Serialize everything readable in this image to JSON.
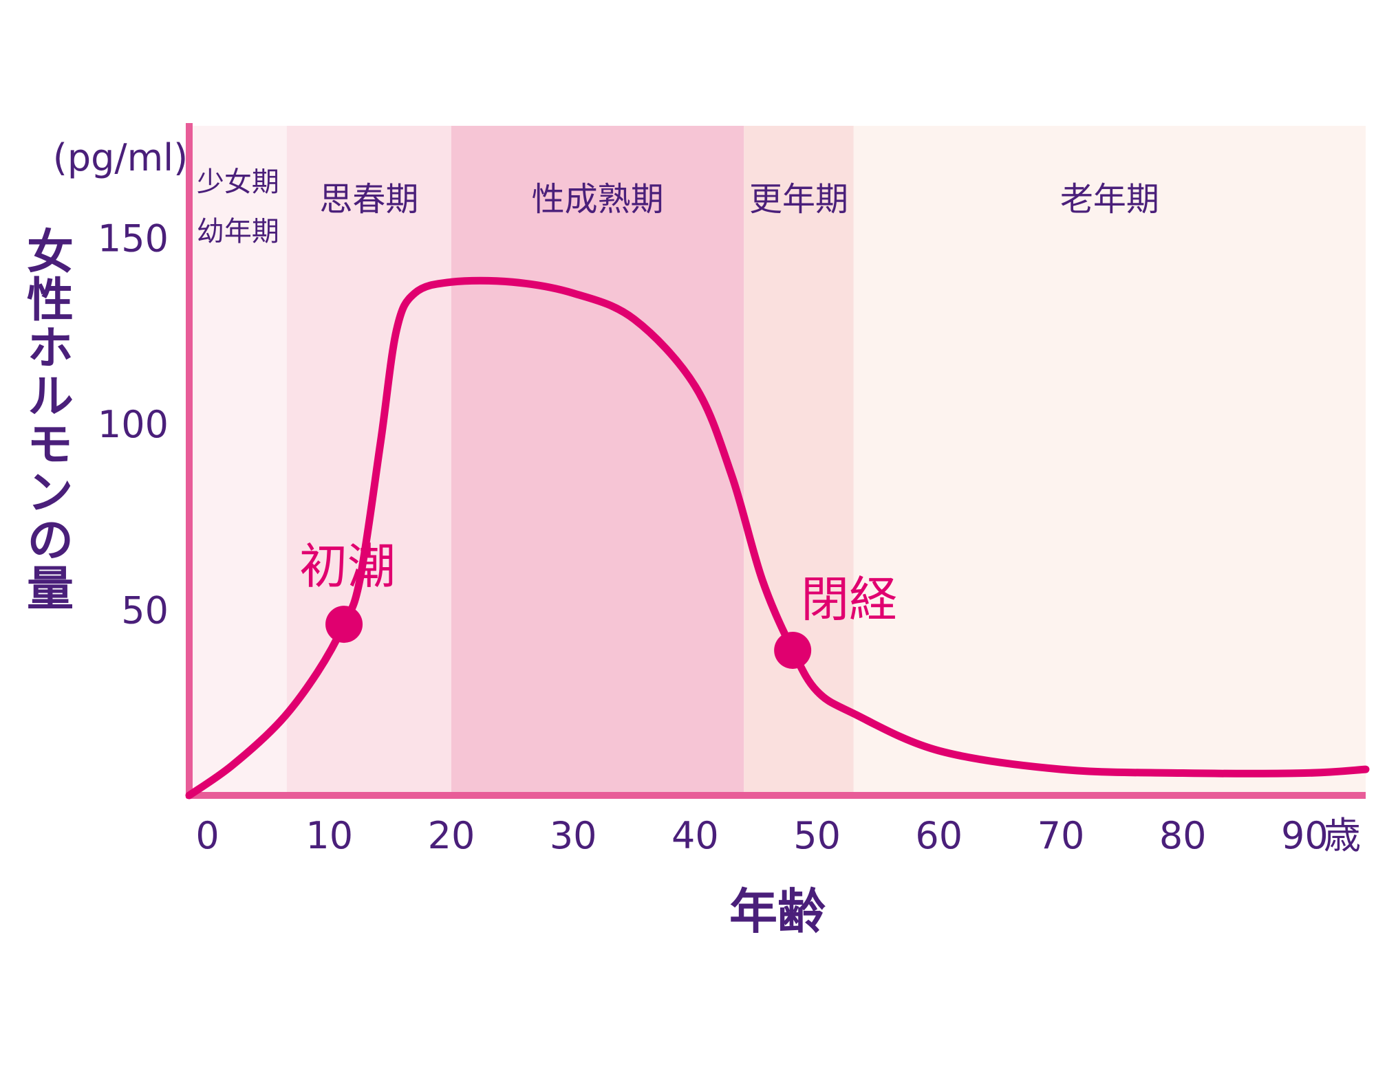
{
  "chart_data": {
    "type": "line",
    "ylabel": "女性ホルモンの量",
    "yunit": "(pg/ml)",
    "xlabel": "年齢",
    "xunit": "歳",
    "xlim": [
      -1.5,
      95
    ],
    "ylim": [
      0,
      180
    ],
    "x_ticks": [
      0,
      10,
      20,
      30,
      40,
      50,
      60,
      70,
      80,
      90
    ],
    "y_ticks": [
      50,
      100,
      150
    ],
    "stages": [
      {
        "label": "少女期",
        "label2": "幼年期",
        "from": -1.5,
        "to": 6.5,
        "color": "#fdf1f3"
      },
      {
        "label": "思春期",
        "from": 6.5,
        "to": 20,
        "color": "#fbe2e8"
      },
      {
        "label": "性成熟期",
        "from": 20,
        "to": 44,
        "color": "#f6c5d5"
      },
      {
        "label": "更年期",
        "from": 44,
        "to": 53,
        "color": "#fae0de"
      },
      {
        "label": "老年期",
        "from": 53,
        "to": 95,
        "color": "#fdf3ef"
      }
    ],
    "series": [
      {
        "color": "#e0006f",
        "points": [
          [
            -1.5,
            0
          ],
          [
            2,
            8
          ],
          [
            6,
            20
          ],
          [
            9,
            33
          ],
          [
            11.2,
            46
          ],
          [
            12.5,
            58
          ],
          [
            14.2,
            95
          ],
          [
            15.5,
            125
          ],
          [
            17,
            135
          ],
          [
            20,
            138
          ],
          [
            25,
            138
          ],
          [
            30,
            135
          ],
          [
            35,
            128
          ],
          [
            40,
            110
          ],
          [
            43,
            86
          ],
          [
            45.5,
            58
          ],
          [
            48,
            39
          ],
          [
            50,
            28
          ],
          [
            53,
            22
          ],
          [
            60,
            12
          ],
          [
            70,
            7
          ],
          [
            80,
            6
          ],
          [
            90,
            6
          ],
          [
            95,
            7
          ]
        ]
      }
    ],
    "annotations": [
      {
        "label": "初潮",
        "x": 11.2,
        "y": 46
      },
      {
        "label": "閉経",
        "x": 48,
        "y": 39
      }
    ]
  }
}
